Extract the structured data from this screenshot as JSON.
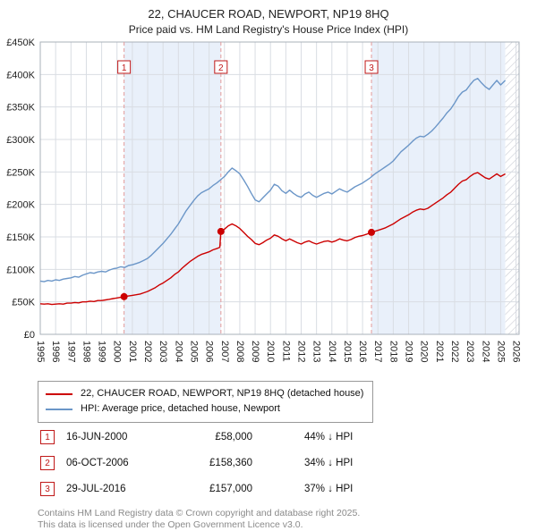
{
  "title": "22, CHAUCER ROAD, NEWPORT, NP19 8HQ",
  "subtitle": "Price paid vs. HM Land Registry's House Price Index (HPI)",
  "colors": {
    "accent_red": "#c01818",
    "property_red": "#cc0000",
    "hpi_blue": "#6b96c8",
    "band_blue": "#e9f0fa",
    "grid": "#d9dde3",
    "plot_border": "#a9b0ba",
    "dashed_red": "#e39a9a",
    "hatch": "#c9ccd4",
    "axis_text": "#222222"
  },
  "chart_data": {
    "type": "line",
    "title": "22, CHAUCER ROAD, NEWPORT, NP19 8HQ",
    "subtitle": "Price paid vs. HM Land Registry's House Price Index (HPI)",
    "units": "GBP thousands",
    "x_axis": {
      "min": 1995,
      "max": 2026.2,
      "tick_start": 1995,
      "tick_end": 2026
    },
    "y_axis": {
      "max_k": 450,
      "tick_step_k": 50,
      "tick_labels": [
        "£0",
        "£50K",
        "£100K",
        "£150K",
        "£200K",
        "£250K",
        "£300K",
        "£350K",
        "£400K",
        "£450K"
      ]
    },
    "ownership_bands": [
      [
        2000.46,
        2006.77
      ],
      [
        2016.58,
        2025.3
      ]
    ],
    "future_zone": [
      2025.3,
      2026.2
    ],
    "series": [
      {
        "name": "22, CHAUCER ROAD, NEWPORT, NP19 8HQ (detached house)",
        "color": "#cc0000",
        "points": [
          [
            1995,
            47
          ],
          [
            1995.25,
            46.5
          ],
          [
            1995.5,
            47
          ],
          [
            1995.75,
            46
          ],
          [
            1996,
            46.5
          ],
          [
            1996.25,
            47
          ],
          [
            1996.5,
            46.5
          ],
          [
            1996.75,
            48
          ],
          [
            1997,
            48
          ],
          [
            1997.25,
            49
          ],
          [
            1997.5,
            48.5
          ],
          [
            1997.75,
            50
          ],
          [
            1998,
            50
          ],
          [
            1998.25,
            51
          ],
          [
            1998.5,
            50.5
          ],
          [
            1998.75,
            52
          ],
          [
            1999,
            52
          ],
          [
            1999.25,
            53
          ],
          [
            1999.5,
            54
          ],
          [
            1999.75,
            55
          ],
          [
            2000,
            56
          ],
          [
            2000.25,
            57
          ],
          [
            2000.46,
            58
          ],
          [
            2000.75,
            59
          ],
          [
            2001,
            60
          ],
          [
            2001.25,
            61
          ],
          [
            2001.5,
            62
          ],
          [
            2001.75,
            64
          ],
          [
            2002,
            66
          ],
          [
            2002.25,
            69
          ],
          [
            2002.5,
            72
          ],
          [
            2002.75,
            76
          ],
          [
            2003,
            79
          ],
          [
            2003.25,
            83
          ],
          [
            2003.5,
            87
          ],
          [
            2003.75,
            92
          ],
          [
            2004,
            96
          ],
          [
            2004.25,
            102
          ],
          [
            2004.5,
            107
          ],
          [
            2004.75,
            112
          ],
          [
            2005,
            116
          ],
          [
            2005.25,
            120
          ],
          [
            2005.5,
            123
          ],
          [
            2005.75,
            125
          ],
          [
            2006,
            127
          ],
          [
            2006.25,
            130
          ],
          [
            2006.5,
            132
          ],
          [
            2006.7,
            134
          ],
          [
            2006.77,
            158.36
          ],
          [
            2007,
            162
          ],
          [
            2007.25,
            167
          ],
          [
            2007.5,
            170
          ],
          [
            2007.75,
            167
          ],
          [
            2008,
            163
          ],
          [
            2008.25,
            157
          ],
          [
            2008.5,
            151
          ],
          [
            2008.75,
            146
          ],
          [
            2009,
            140
          ],
          [
            2009.25,
            138
          ],
          [
            2009.5,
            141
          ],
          [
            2009.75,
            145
          ],
          [
            2010,
            148
          ],
          [
            2010.25,
            153
          ],
          [
            2010.5,
            151
          ],
          [
            2010.75,
            147
          ],
          [
            2011,
            144
          ],
          [
            2011.25,
            147
          ],
          [
            2011.5,
            144
          ],
          [
            2011.75,
            141
          ],
          [
            2012,
            139
          ],
          [
            2012.25,
            142
          ],
          [
            2012.5,
            144
          ],
          [
            2012.75,
            141
          ],
          [
            2013,
            139
          ],
          [
            2013.25,
            141
          ],
          [
            2013.5,
            143
          ],
          [
            2013.75,
            144
          ],
          [
            2014,
            142
          ],
          [
            2014.25,
            144
          ],
          [
            2014.5,
            147
          ],
          [
            2014.75,
            145
          ],
          [
            2015,
            144
          ],
          [
            2015.25,
            146
          ],
          [
            2015.5,
            149
          ],
          [
            2015.75,
            151
          ],
          [
            2016,
            152
          ],
          [
            2016.25,
            154
          ],
          [
            2016.58,
            157
          ],
          [
            2017,
            160
          ],
          [
            2017.25,
            162
          ],
          [
            2017.5,
            164
          ],
          [
            2017.75,
            167
          ],
          [
            2018,
            170
          ],
          [
            2018.25,
            174
          ],
          [
            2018.5,
            178
          ],
          [
            2018.75,
            181
          ],
          [
            2019,
            184
          ],
          [
            2019.25,
            188
          ],
          [
            2019.5,
            191
          ],
          [
            2019.75,
            193
          ],
          [
            2020,
            192
          ],
          [
            2020.25,
            194
          ],
          [
            2020.5,
            198
          ],
          [
            2020.75,
            202
          ],
          [
            2021,
            206
          ],
          [
            2021.25,
            210
          ],
          [
            2021.5,
            215
          ],
          [
            2021.75,
            219
          ],
          [
            2022,
            225
          ],
          [
            2022.25,
            231
          ],
          [
            2022.5,
            236
          ],
          [
            2022.75,
            238
          ],
          [
            2023,
            243
          ],
          [
            2023.25,
            247
          ],
          [
            2023.5,
            249
          ],
          [
            2023.75,
            245
          ],
          [
            2024,
            241
          ],
          [
            2024.25,
            239
          ],
          [
            2024.5,
            243
          ],
          [
            2024.75,
            247
          ],
          [
            2025,
            243
          ],
          [
            2025.3,
            247
          ]
        ]
      },
      {
        "name": "HPI: Average price, detached house, Newport",
        "color": "#6b96c8",
        "points": [
          [
            1995,
            82
          ],
          [
            1995.25,
            81
          ],
          [
            1995.5,
            83
          ],
          [
            1995.75,
            82
          ],
          [
            1996,
            84
          ],
          [
            1996.25,
            83
          ],
          [
            1996.5,
            85
          ],
          [
            1996.75,
            86
          ],
          [
            1997,
            87
          ],
          [
            1997.25,
            89
          ],
          [
            1997.5,
            88
          ],
          [
            1997.75,
            91
          ],
          [
            1998,
            93
          ],
          [
            1998.25,
            95
          ],
          [
            1998.5,
            94
          ],
          [
            1998.75,
            96
          ],
          [
            1999,
            97
          ],
          [
            1999.25,
            96
          ],
          [
            1999.5,
            99
          ],
          [
            1999.75,
            101
          ],
          [
            2000,
            102
          ],
          [
            2000.25,
            104
          ],
          [
            2000.5,
            103
          ],
          [
            2000.75,
            106
          ],
          [
            2001,
            107
          ],
          [
            2001.25,
            109
          ],
          [
            2001.5,
            111
          ],
          [
            2001.75,
            114
          ],
          [
            2002,
            117
          ],
          [
            2002.25,
            122
          ],
          [
            2002.5,
            128
          ],
          [
            2002.75,
            134
          ],
          [
            2003,
            140
          ],
          [
            2003.25,
            147
          ],
          [
            2003.5,
            154
          ],
          [
            2003.75,
            162
          ],
          [
            2004,
            170
          ],
          [
            2004.25,
            180
          ],
          [
            2004.5,
            190
          ],
          [
            2004.75,
            198
          ],
          [
            2005,
            206
          ],
          [
            2005.25,
            213
          ],
          [
            2005.5,
            218
          ],
          [
            2005.75,
            221
          ],
          [
            2006,
            224
          ],
          [
            2006.25,
            229
          ],
          [
            2006.5,
            233
          ],
          [
            2006.75,
            238
          ],
          [
            2007,
            243
          ],
          [
            2007.25,
            250
          ],
          [
            2007.5,
            256
          ],
          [
            2007.75,
            252
          ],
          [
            2008,
            247
          ],
          [
            2008.25,
            238
          ],
          [
            2008.5,
            228
          ],
          [
            2008.75,
            217
          ],
          [
            2009,
            207
          ],
          [
            2009.25,
            204
          ],
          [
            2009.5,
            210
          ],
          [
            2009.75,
            216
          ],
          [
            2010,
            222
          ],
          [
            2010.25,
            231
          ],
          [
            2010.5,
            228
          ],
          [
            2010.75,
            221
          ],
          [
            2011,
            217
          ],
          [
            2011.25,
            222
          ],
          [
            2011.5,
            217
          ],
          [
            2011.75,
            213
          ],
          [
            2012,
            211
          ],
          [
            2012.25,
            216
          ],
          [
            2012.5,
            219
          ],
          [
            2012.75,
            214
          ],
          [
            2013,
            211
          ],
          [
            2013.25,
            214
          ],
          [
            2013.5,
            217
          ],
          [
            2013.75,
            219
          ],
          [
            2014,
            216
          ],
          [
            2014.25,
            220
          ],
          [
            2014.5,
            224
          ],
          [
            2014.75,
            221
          ],
          [
            2015,
            219
          ],
          [
            2015.25,
            223
          ],
          [
            2015.5,
            227
          ],
          [
            2015.75,
            230
          ],
          [
            2016,
            233
          ],
          [
            2016.25,
            237
          ],
          [
            2016.5,
            241
          ],
          [
            2016.75,
            246
          ],
          [
            2017,
            250
          ],
          [
            2017.25,
            254
          ],
          [
            2017.5,
            258
          ],
          [
            2017.75,
            262
          ],
          [
            2018,
            267
          ],
          [
            2018.25,
            274
          ],
          [
            2018.5,
            281
          ],
          [
            2018.75,
            286
          ],
          [
            2019,
            291
          ],
          [
            2019.25,
            297
          ],
          [
            2019.5,
            302
          ],
          [
            2019.75,
            305
          ],
          [
            2020,
            304
          ],
          [
            2020.25,
            308
          ],
          [
            2020.5,
            313
          ],
          [
            2020.75,
            319
          ],
          [
            2021,
            326
          ],
          [
            2021.25,
            333
          ],
          [
            2021.5,
            341
          ],
          [
            2021.75,
            347
          ],
          [
            2022,
            356
          ],
          [
            2022.25,
            366
          ],
          [
            2022.5,
            373
          ],
          [
            2022.75,
            376
          ],
          [
            2023,
            384
          ],
          [
            2023.25,
            391
          ],
          [
            2023.5,
            394
          ],
          [
            2023.75,
            387
          ],
          [
            2024,
            381
          ],
          [
            2024.25,
            377
          ],
          [
            2024.5,
            384
          ],
          [
            2024.75,
            391
          ],
          [
            2025,
            384
          ],
          [
            2025.3,
            391
          ]
        ]
      }
    ],
    "sales": [
      {
        "n": 1,
        "x": 2000.46,
        "y_k": 58,
        "date": "16-JUN-2000",
        "price": "£58,000",
        "vs_hpi": "44% ↓ HPI"
      },
      {
        "n": 2,
        "x": 2006.77,
        "y_k": 158.36,
        "date": "06-OCT-2006",
        "price": "£158,360",
        "vs_hpi": "34% ↓ HPI"
      },
      {
        "n": 3,
        "x": 2016.58,
        "y_k": 157,
        "date": "29-JUL-2016",
        "price": "£157,000",
        "vs_hpi": "37% ↓ HPI"
      }
    ]
  },
  "footer": {
    "line1": "Contains HM Land Registry data © Crown copyright and database right 2025.",
    "line2": "This data is licensed under the Open Government Licence v3.0."
  }
}
